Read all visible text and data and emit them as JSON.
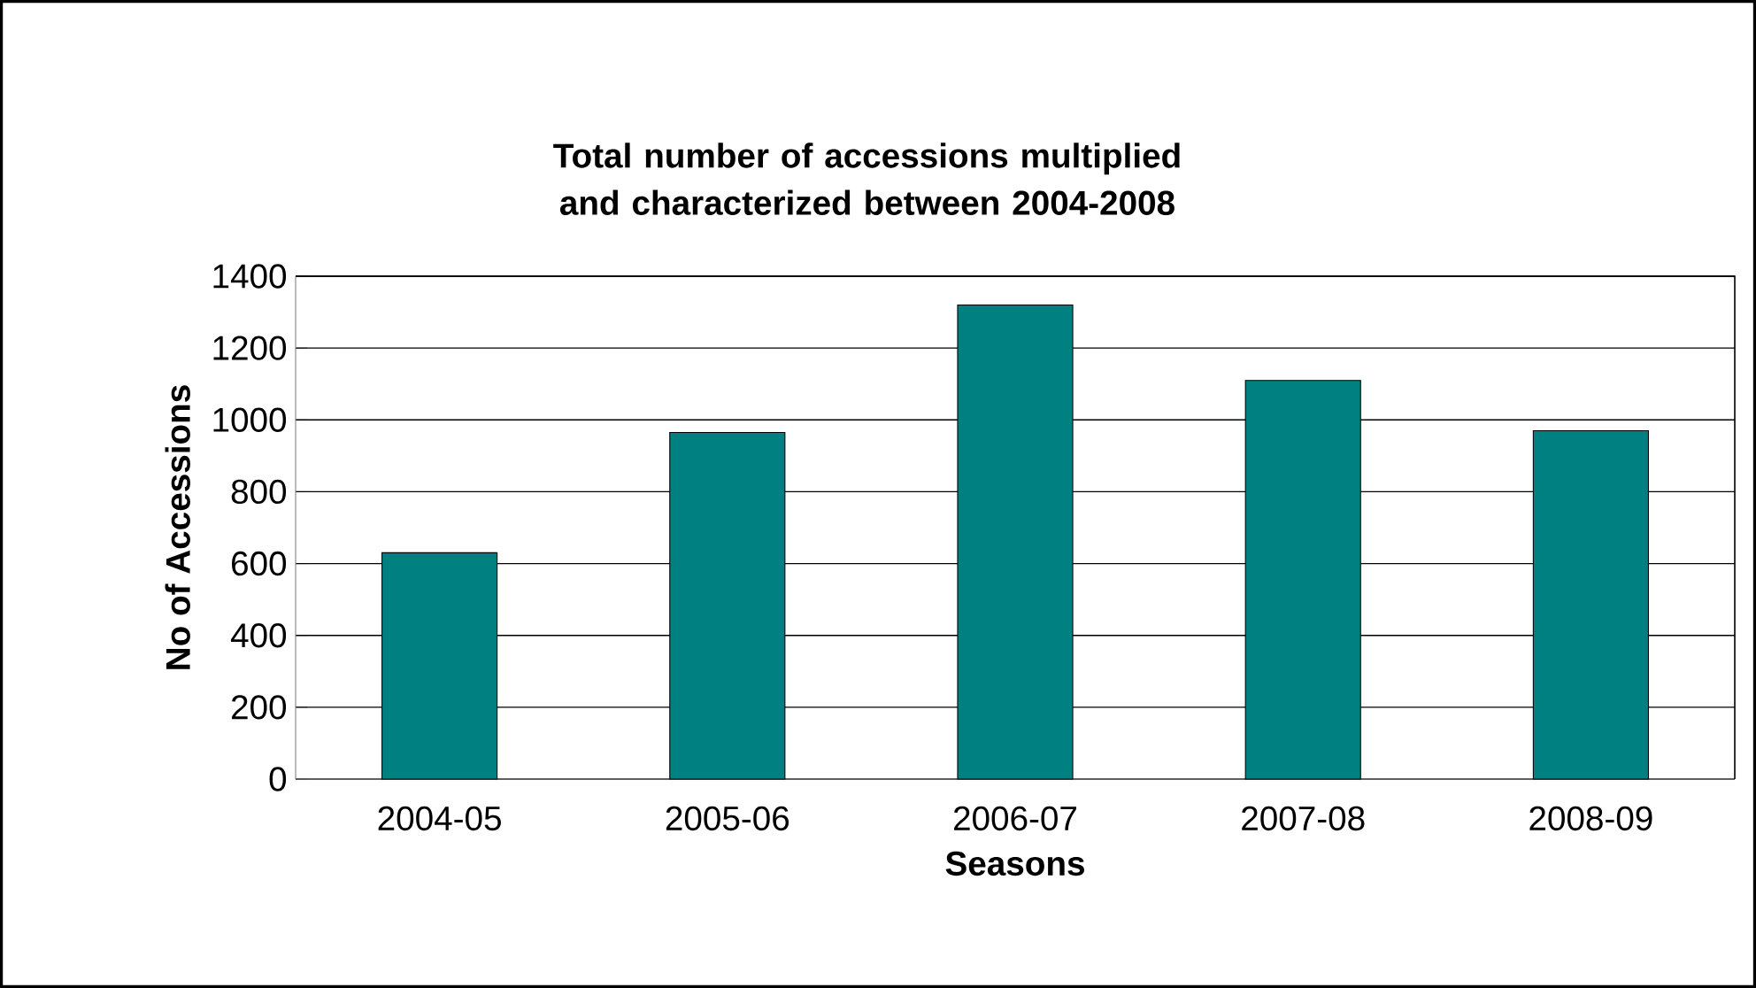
{
  "chart_data": {
    "type": "bar",
    "title": "Total number of accessions multiplied and characterized between 2004-2008",
    "xlabel": "Seasons",
    "ylabel": "No of Accessions",
    "categories": [
      "2004-05",
      "2005-06",
      "2006-07",
      "2007-08",
      "2008-09"
    ],
    "values": [
      630,
      965,
      1320,
      1110,
      970
    ],
    "color": "#008080",
    "ylim": [
      0,
      1400
    ],
    "yticks": [
      0,
      200,
      400,
      600,
      800,
      1000,
      1200,
      1400
    ],
    "grid": "y"
  }
}
